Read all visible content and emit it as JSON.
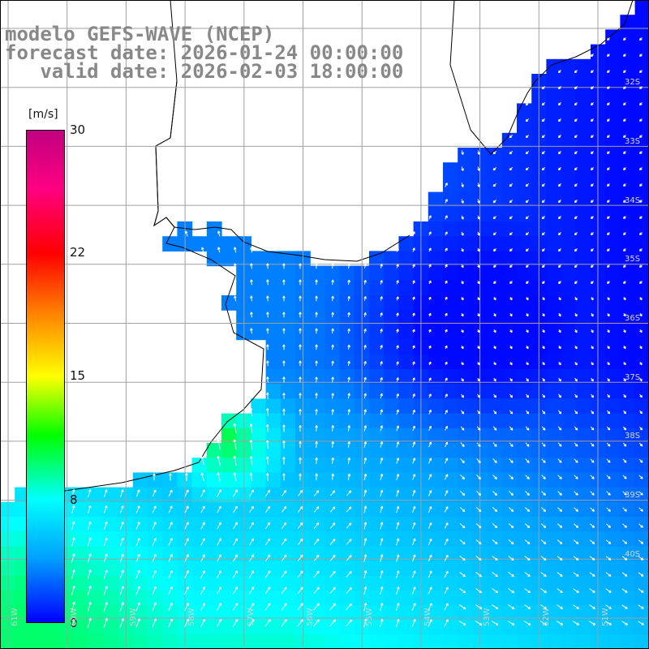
{
  "header": {
    "line1": "modelo GEFS-WAVE (NCEP)",
    "line2": "forecast date: 2026-01-24 00:00:00",
    "line3": "   valid date: 2026-02-03 18:00:00"
  },
  "colorbar": {
    "unit": "[m/s]",
    "min": 0,
    "max": 30,
    "tick_labels": [
      "30",
      "22",
      "15",
      "8",
      "0"
    ],
    "tick_values": [
      30,
      22,
      15,
      8,
      0
    ],
    "colors": [
      "#0000ff",
      "#00a0ff",
      "#00ffff",
      "#00ff00",
      "#ffff00",
      "#ff8000",
      "#ff0000",
      "#ff0080",
      "#c00080"
    ]
  },
  "map": {
    "lat_labels": [
      "32S",
      "33S",
      "34S",
      "35S",
      "36S",
      "37S",
      "38S",
      "39S",
      "40S"
    ],
    "lon_labels": [
      "61W",
      "60W",
      "59W",
      "58W",
      "57W",
      "56W",
      "55W",
      "54W",
      "53W",
      "52W",
      "51W"
    ],
    "land_color": "#ffffff",
    "grid_color": "#a0a0a0",
    "arrow_color": "#ffffff"
  }
}
